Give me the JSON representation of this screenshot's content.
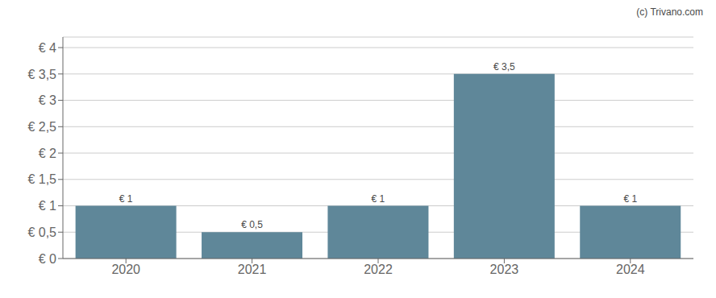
{
  "chart_data": {
    "type": "bar",
    "categories": [
      "2020",
      "2021",
      "2022",
      "2023",
      "2024"
    ],
    "values": [
      1.0,
      0.5,
      1.0,
      3.5,
      1.0
    ],
    "color": "#5f8799",
    "data_labels": true,
    "value_labels": [
      "€ 1",
      "€ 0,5",
      "€ 1",
      "€ 3,5",
      "€ 1"
    ],
    "ylim": [
      0,
      4.2
    ],
    "yticks": [
      {
        "value": 0,
        "label": "€ 0"
      },
      {
        "value": 0.5,
        "label": "€ 0,5"
      },
      {
        "value": 1.0,
        "label": "€ 1"
      },
      {
        "value": 1.5,
        "label": "€ 1,5"
      },
      {
        "value": 2.0,
        "label": "€ 2"
      },
      {
        "value": 2.5,
        "label": "€ 2,5"
      },
      {
        "value": 3.0,
        "label": "€ 3"
      },
      {
        "value": 3.5,
        "label": "€ 3,5"
      },
      {
        "value": 4.0,
        "label": "€ 4"
      }
    ],
    "grid": true,
    "annotations": [
      "(c) Trivano.com"
    ]
  }
}
